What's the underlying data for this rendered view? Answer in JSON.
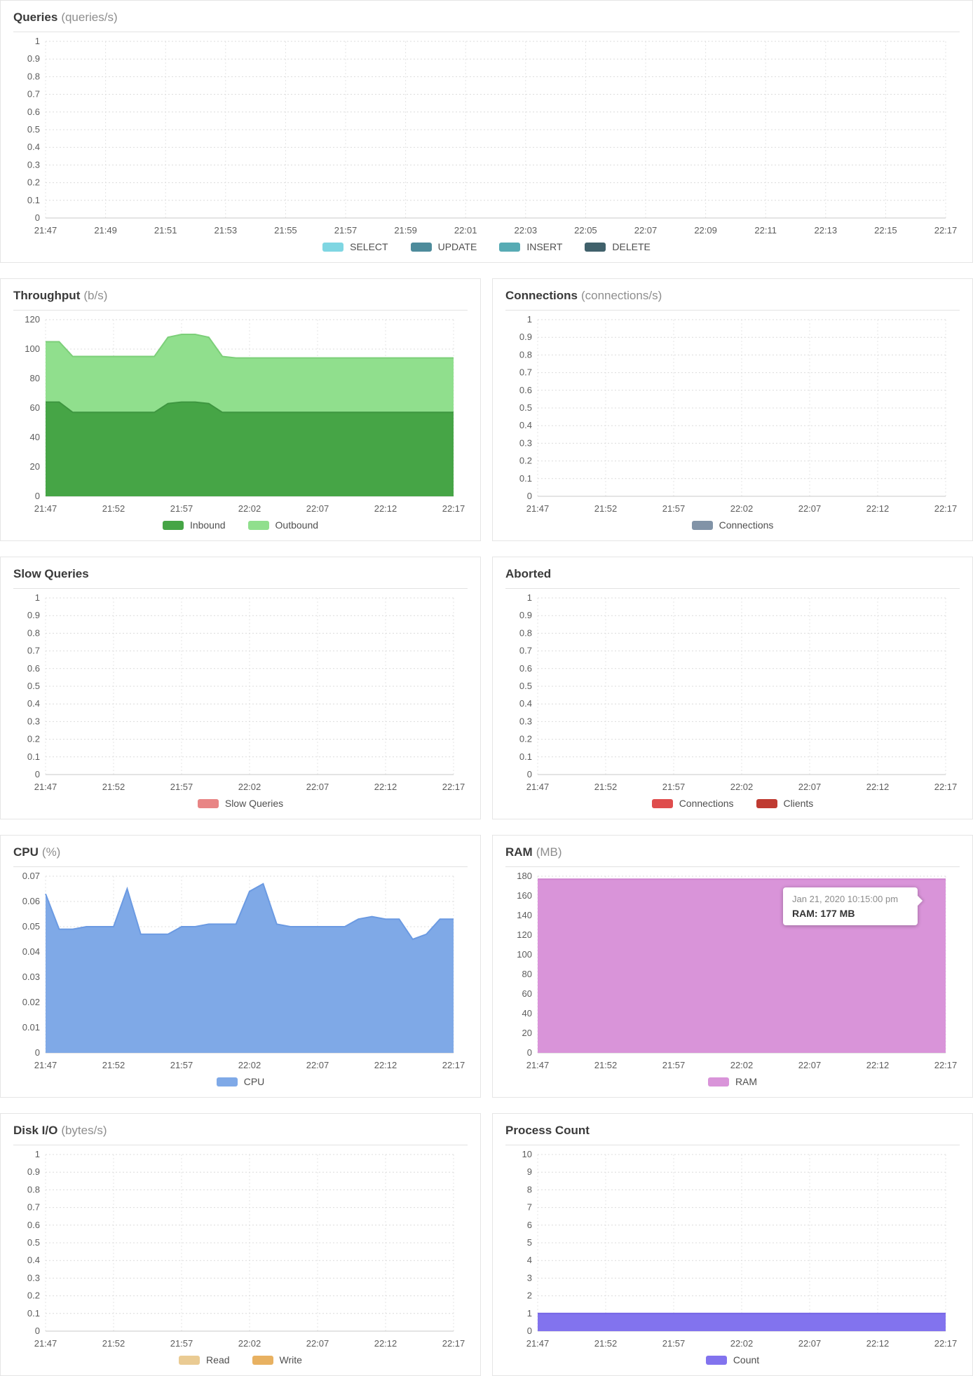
{
  "page": {
    "background": "#ffffff"
  },
  "chart_data": [
    {
      "id": "queries",
      "title": "Queries",
      "unit": "(queries/s)",
      "span": "full",
      "type": "area",
      "grid": true,
      "legend_position": "bottom",
      "ylim": [
        0,
        1
      ],
      "ytick_step": 0.1,
      "xticks": [
        "21:47",
        "21:49",
        "21:51",
        "21:53",
        "21:55",
        "21:57",
        "21:59",
        "22:01",
        "22:03",
        "22:05",
        "22:07",
        "22:09",
        "22:11",
        "22:13",
        "22:15",
        "22:17"
      ],
      "stacked": false,
      "series": [
        {
          "name": "SELECT",
          "color": "#7fd6e2",
          "values": []
        },
        {
          "name": "UPDATE",
          "color": "#4d8b9b",
          "values": []
        },
        {
          "name": "INSERT",
          "color": "#57abb4",
          "values": []
        },
        {
          "name": "DELETE",
          "color": "#40616b",
          "values": []
        }
      ]
    },
    {
      "id": "throughput",
      "title": "Throughput",
      "unit": "(b/s)",
      "span": "half",
      "type": "area",
      "grid": true,
      "legend_position": "bottom",
      "ylim": [
        0,
        120
      ],
      "ytick_step": 20,
      "xticks": [
        "21:47",
        "21:52",
        "21:57",
        "22:02",
        "22:07",
        "22:12",
        "22:17"
      ],
      "stacked": true,
      "series": [
        {
          "name": "Inbound",
          "color": "#46a546",
          "stroke": "#3e9640",
          "values": [
            64,
            64,
            57,
            57,
            57,
            57,
            57,
            57,
            57,
            63,
            64,
            64,
            63,
            57,
            57,
            57,
            57,
            57,
            57,
            57,
            57,
            57,
            57,
            57,
            57,
            57,
            57,
            57,
            57,
            57,
            57
          ]
        },
        {
          "name": "Outbound",
          "color": "#90df8d",
          "stroke": "#7ccf79",
          "values": [
            41,
            41,
            38,
            38,
            38,
            38,
            38,
            38,
            38,
            45,
            46,
            46,
            45,
            38,
            37,
            37,
            37,
            37,
            37,
            37,
            37,
            37,
            37,
            37,
            37,
            37,
            37,
            37,
            37,
            37,
            37
          ]
        }
      ]
    },
    {
      "id": "connections",
      "title": "Connections",
      "unit": "(connections/s)",
      "span": "half",
      "type": "area",
      "grid": true,
      "legend_position": "bottom",
      "ylim": [
        0,
        1
      ],
      "ytick_step": 0.1,
      "xticks": [
        "21:47",
        "21:52",
        "21:57",
        "22:02",
        "22:07",
        "22:12",
        "22:17"
      ],
      "stacked": false,
      "series": [
        {
          "name": "Connections",
          "color": "#8193a7",
          "values": []
        }
      ]
    },
    {
      "id": "slow-queries",
      "title": "Slow Queries",
      "unit": "",
      "span": "half",
      "type": "area",
      "grid": true,
      "legend_position": "bottom",
      "ylim": [
        0,
        1
      ],
      "ytick_step": 0.1,
      "xticks": [
        "21:47",
        "21:52",
        "21:57",
        "22:02",
        "22:07",
        "22:12",
        "22:17"
      ],
      "stacked": false,
      "series": [
        {
          "name": "Slow Queries",
          "color": "#e88585",
          "values": []
        }
      ]
    },
    {
      "id": "aborted",
      "title": "Aborted",
      "unit": "",
      "span": "half",
      "type": "area",
      "grid": true,
      "legend_position": "bottom",
      "ylim": [
        0,
        1
      ],
      "ytick_step": 0.1,
      "xticks": [
        "21:47",
        "21:52",
        "21:57",
        "22:02",
        "22:07",
        "22:12",
        "22:17"
      ],
      "stacked": false,
      "series": [
        {
          "name": "Connections",
          "color": "#df4d4d",
          "values": []
        },
        {
          "name": "Clients",
          "color": "#bf3a31",
          "values": []
        }
      ]
    },
    {
      "id": "cpu",
      "title": "CPU",
      "unit": "(%)",
      "span": "half",
      "type": "area",
      "grid": true,
      "legend_position": "bottom",
      "ylim": [
        0,
        0.07
      ],
      "ytick_step": 0.01,
      "xticks": [
        "21:47",
        "21:52",
        "21:57",
        "22:02",
        "22:07",
        "22:12",
        "22:17"
      ],
      "stacked": false,
      "series": [
        {
          "name": "CPU",
          "color": "#7fa9e7",
          "stroke": "#6b9ae2",
          "values": [
            0.063,
            0.049,
            0.049,
            0.05,
            0.05,
            0.05,
            0.065,
            0.047,
            0.047,
            0.047,
            0.05,
            0.05,
            0.051,
            0.051,
            0.051,
            0.064,
            0.067,
            0.051,
            0.05,
            0.05,
            0.05,
            0.05,
            0.05,
            0.053,
            0.054,
            0.053,
            0.053,
            0.045,
            0.047,
            0.053,
            0.053
          ]
        }
      ]
    },
    {
      "id": "ram",
      "title": "RAM",
      "unit": "(MB)",
      "span": "half",
      "type": "area",
      "grid": true,
      "legend_position": "bottom",
      "ylim": [
        0,
        180
      ],
      "ytick_step": 20,
      "xticks": [
        "21:47",
        "21:52",
        "21:57",
        "22:02",
        "22:07",
        "22:12",
        "22:17"
      ],
      "stacked": false,
      "tooltip": {
        "date": "Jan 21, 2020 10:15:00 pm",
        "value": "RAM: 177 MB"
      },
      "series": [
        {
          "name": "RAM",
          "color": "#d994d9",
          "stroke": "#ce83ce",
          "values": [
            177,
            177,
            177,
            177,
            177,
            177,
            177,
            177,
            177,
            177,
            177,
            177,
            177,
            177,
            177,
            177,
            177,
            177,
            177,
            177,
            177,
            177,
            177,
            177,
            177,
            177,
            177,
            177,
            177,
            177,
            177
          ]
        }
      ]
    },
    {
      "id": "disk-io",
      "title": "Disk I/O",
      "unit": "(bytes/s)",
      "span": "half",
      "type": "area",
      "grid": true,
      "legend_position": "bottom",
      "ylim": [
        0,
        1
      ],
      "ytick_step": 0.1,
      "xticks": [
        "21:47",
        "21:52",
        "21:57",
        "22:02",
        "22:07",
        "22:12",
        "22:17"
      ],
      "stacked": false,
      "series": [
        {
          "name": "Read",
          "color": "#eacb93",
          "values": []
        },
        {
          "name": "Write",
          "color": "#e8b161",
          "values": []
        }
      ]
    },
    {
      "id": "process-count",
      "title": "Process Count",
      "unit": "",
      "span": "half",
      "type": "area",
      "grid": true,
      "legend_position": "bottom",
      "ylim": [
        0,
        10
      ],
      "ytick_step": 1,
      "xticks": [
        "21:47",
        "21:52",
        "21:57",
        "22:02",
        "22:07",
        "22:12",
        "22:17"
      ],
      "stacked": false,
      "series": [
        {
          "name": "Count",
          "color": "#8273ee",
          "stroke": "#7465e5",
          "values": [
            1,
            1,
            1,
            1,
            1,
            1,
            1,
            1,
            1,
            1,
            1,
            1,
            1,
            1,
            1,
            1,
            1,
            1,
            1,
            1,
            1,
            1,
            1,
            1,
            1,
            1,
            1,
            1,
            1,
            1,
            1
          ]
        }
      ]
    }
  ]
}
